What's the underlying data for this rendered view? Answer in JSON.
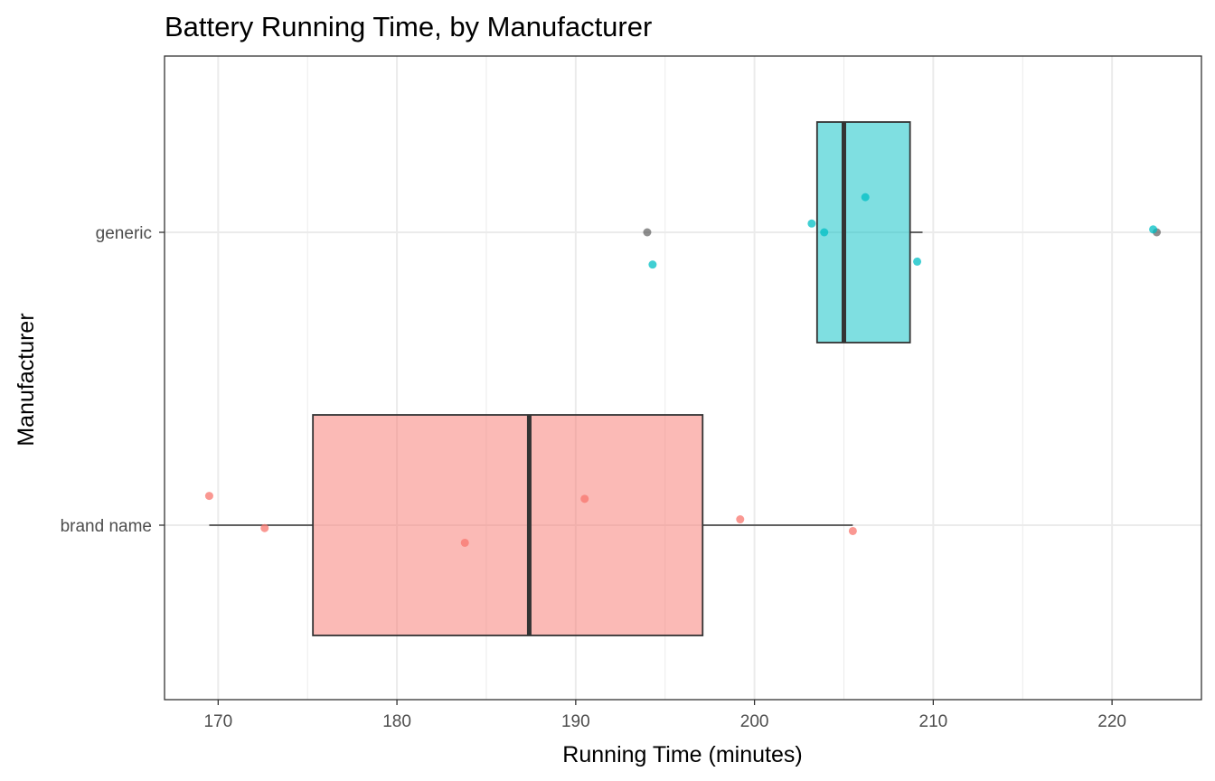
{
  "chart_data": {
    "type": "boxplot",
    "orientation": "horizontal",
    "title": "Battery Running Time, by Manufacturer",
    "xlabel": "Running Time (minutes)",
    "ylabel": "Manufacturer",
    "xlim": [
      167,
      225
    ],
    "x_ticks": [
      "170",
      "180",
      "190",
      "200",
      "210",
      "220"
    ],
    "categories": [
      "brand name",
      "generic"
    ],
    "grid": true,
    "legend": "none",
    "series": [
      {
        "category": "brand name",
        "color": "#f8766d",
        "box": {
          "lower_whisker": 169.5,
          "q1": 175.3,
          "median": 187.4,
          "q3": 197.1,
          "upper_whisker": 205.5,
          "outliers": []
        },
        "points": [
          {
            "x": 169.5,
            "jitter": 0.1
          },
          {
            "x": 172.6,
            "jitter": -0.01
          },
          {
            "x": 183.8,
            "jitter": -0.06
          },
          {
            "x": 190.5,
            "jitter": 0.09
          },
          {
            "x": 199.2,
            "jitter": 0.02
          },
          {
            "x": 205.5,
            "jitter": -0.02
          }
        ]
      },
      {
        "category": "generic",
        "color": "#00bfc4",
        "box": {
          "lower_whisker": 203.5,
          "q1": 203.5,
          "median": 205.0,
          "q3": 208.7,
          "upper_whisker": 209.4,
          "outliers": [
            194.0,
            222.5
          ]
        },
        "points": [
          {
            "x": 194.3,
            "jitter": -0.11
          },
          {
            "x": 203.2,
            "jitter": 0.03
          },
          {
            "x": 203.9,
            "jitter": 0.0
          },
          {
            "x": 206.2,
            "jitter": 0.12
          },
          {
            "x": 209.1,
            "jitter": -0.1
          },
          {
            "x": 222.3,
            "jitter": 0.01
          }
        ]
      }
    ]
  }
}
